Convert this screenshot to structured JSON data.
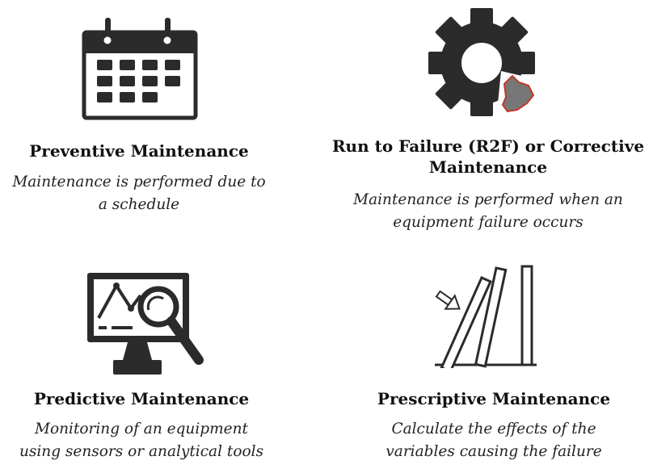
{
  "quadrants": [
    {
      "title": "Preventive Maintenance",
      "description_lines": [
        "Maintenance is performed due to",
        "a schedule"
      ],
      "icon": "calendar-icon"
    },
    {
      "title_lines": [
        "Run to Failure (R2F) or Corrective",
        "Maintenance"
      ],
      "description_lines": [
        "Maintenance is performed when an",
        "equipment failure occurs"
      ],
      "icon": "broken-gear-icon"
    },
    {
      "title": "Predictive Maintenance",
      "description_lines": [
        "Monitoring of an equipment",
        "using sensors or analytical tools"
      ],
      "icon": "monitor-magnifier-icon"
    },
    {
      "title": "Prescriptive Maintenance",
      "description_lines": [
        "Calculate the effects of the",
        "variables causing the failure"
      ],
      "icon": "falling-dominoes-icon"
    }
  ],
  "colors": {
    "icon_dark": "#2b2b2b",
    "broken_piece": "#777777",
    "broken_outline": "#c0392b",
    "text": "#111111"
  }
}
